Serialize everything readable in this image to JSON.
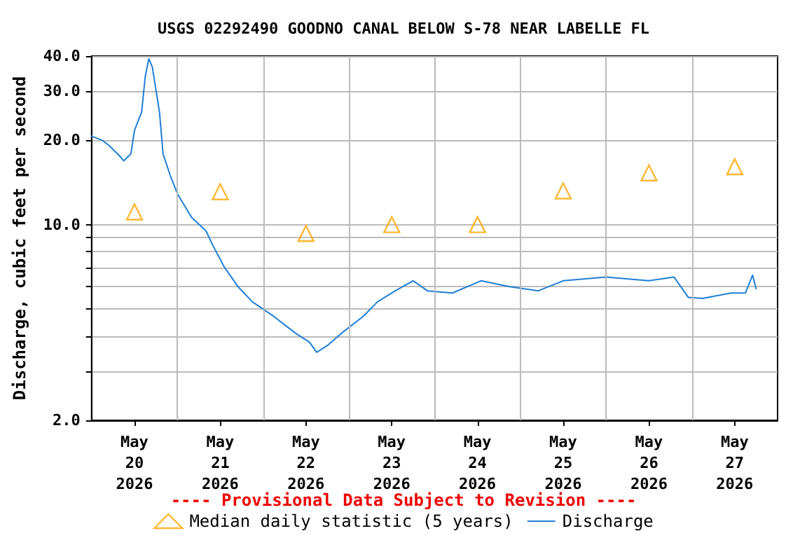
{
  "chart_data": {
    "type": "line",
    "title": "USGS 02292490 GOODNO CANAL BELOW S-78 NEAR LABELLE FL",
    "ylabel": "Discharge, cubic feet per second",
    "log": "y",
    "grid": true,
    "legend": "bottom",
    "annotations": [
      "---- Provisional Data Subject to Revision ----"
    ],
    "xlim": [
      "2026-05-20T00:00",
      "2026-05-28T00:00"
    ],
    "xticks": [
      {
        "value": "2026-05-20T12:00",
        "label": "May\n20\n2026"
      },
      {
        "value": "2026-05-21T00:00",
        "label": null
      },
      {
        "value": "2026-05-21T12:00",
        "label": "May\n21\n2026"
      },
      {
        "value": "2026-05-22T00:00",
        "label": null
      },
      {
        "value": "2026-05-22T12:00",
        "label": "May\n22\n2026"
      },
      {
        "value": "2026-05-23T00:00",
        "label": null
      },
      {
        "value": "2026-05-23T12:00",
        "label": "May\n23\n2026"
      },
      {
        "value": "2026-05-24T00:00",
        "label": null
      },
      {
        "value": "2026-05-24T12:00",
        "label": "May\n24\n2026"
      },
      {
        "value": "2026-05-25T00:00",
        "label": null
      },
      {
        "value": "2026-05-25T12:00",
        "label": "May\n25\n2026"
      },
      {
        "value": "2026-05-26T00:00",
        "label": null
      },
      {
        "value": "2026-05-26T12:00",
        "label": "May\n26\n2026"
      },
      {
        "value": "2026-05-27T00:00",
        "label": null
      },
      {
        "value": "2026-05-27T12:00",
        "label": "May\n27\n2026"
      }
    ],
    "ylim": [
      2,
      40
    ],
    "yticks": [
      {
        "value": 2,
        "label": "2.0"
      },
      {
        "value": 3,
        "label": null
      },
      {
        "value": 4,
        "label": null
      },
      {
        "value": 5,
        "label": null
      },
      {
        "value": 6,
        "label": null
      },
      {
        "value": 7,
        "label": null
      },
      {
        "value": 8,
        "label": null
      },
      {
        "value": 9,
        "label": null
      },
      {
        "value": 10,
        "label": "10.0"
      },
      {
        "value": 20,
        "label": "20.0"
      },
      {
        "value": 30,
        "label": "30.0"
      },
      {
        "value": 40,
        "label": "40.0"
      }
    ],
    "series": [
      {
        "name": "Median daily statistic (5 years)",
        "type": "scatter",
        "marker": "triangle",
        "color": "#ffa500",
        "x": [
          "2026-05-20T12:00",
          "2026-05-21T12:00",
          "2026-05-22T12:00",
          "2026-05-23T12:00",
          "2026-05-24T12:00",
          "2026-05-25T12:00",
          "2026-05-26T12:00",
          "2026-05-27T12:00"
        ],
        "values": [
          11.1,
          13.1,
          9.3,
          10.0,
          10.0,
          13.2,
          15.3,
          16.1
        ]
      },
      {
        "name": "Discharge",
        "marker": "none",
        "line_style": "solid",
        "color": "#1f7fd6",
        "x": [
          "2026-05-20T00:00",
          "2026-05-20T03:00",
          "2026-05-20T05:00",
          "2026-05-20T08:00",
          "2026-05-20T09:00",
          "2026-05-20T11:00",
          "2026-05-20T12:00",
          "2026-05-20T14:00",
          "2026-05-20T15:00",
          "2026-05-20T16:00",
          "2026-05-20T17:00",
          "2026-05-20T19:00",
          "2026-05-20T20:00",
          "2026-05-20T22:00",
          "2026-05-21T00:00",
          "2026-05-21T04:00",
          "2026-05-21T08:00",
          "2026-05-21T10:00",
          "2026-05-21T13:00",
          "2026-05-21T17:00",
          "2026-05-21T21:00",
          "2026-05-22T03:00",
          "2026-05-22T09:00",
          "2026-05-22T13:00",
          "2026-05-22T15:00",
          "2026-05-22T18:00",
          "2026-05-22T22:00",
          "2026-05-23T04:00",
          "2026-05-23T08:00",
          "2026-05-23T13:00",
          "2026-05-23T18:00",
          "2026-05-23T22:00",
          "2026-05-24T05:00",
          "2026-05-24T13:00",
          "2026-05-24T21:00",
          "2026-05-25T05:00",
          "2026-05-25T12:00",
          "2026-05-26T00:00",
          "2026-05-26T12:00",
          "2026-05-26T19:00",
          "2026-05-26T23:00",
          "2026-05-27T03:00",
          "2026-05-27T11:00",
          "2026-05-27T15:00",
          "2026-05-27T17:00",
          "2026-05-27T18:00"
        ],
        "values": [
          20.7,
          20.0,
          19.1,
          17.5,
          16.9,
          17.9,
          21.7,
          25.2,
          33.7,
          39.1,
          36.5,
          25.2,
          17.9,
          15.0,
          12.9,
          10.6,
          9.5,
          8.4,
          7.1,
          6.0,
          5.3,
          4.7,
          4.1,
          3.8,
          3.5,
          3.7,
          4.1,
          4.7,
          5.3,
          5.8,
          6.3,
          5.8,
          5.7,
          6.3,
          6.0,
          5.8,
          6.3,
          6.5,
          6.3,
          6.5,
          5.5,
          5.45,
          5.7,
          5.7,
          6.6,
          5.9
        ]
      }
    ]
  }
}
